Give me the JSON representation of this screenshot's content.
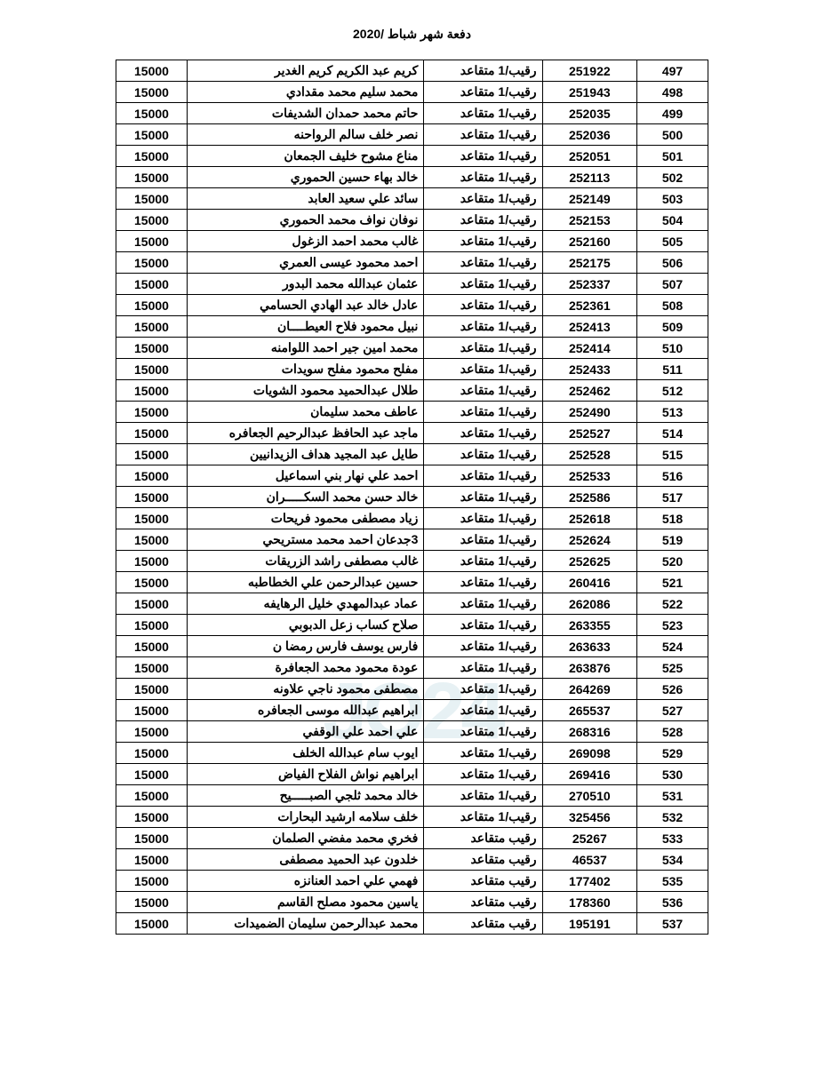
{
  "title": "دفعة شهر شباط /2020",
  "watermark": "JO24",
  "rank_label_1": "رقيب/1 متقاعد",
  "rank_label_2": "رقيب متقاعد",
  "amount_value": "15000",
  "rows": [
    {
      "seq": "497",
      "id": "251922",
      "rank_key": "rank_label_1",
      "name": "كريم عبد الكريم كريم الغدير"
    },
    {
      "seq": "498",
      "id": "251943",
      "rank_key": "rank_label_1",
      "name": "محمد سليم محمد مقدادي"
    },
    {
      "seq": "499",
      "id": "252035",
      "rank_key": "rank_label_1",
      "name": "حاتم محمد حمدان الشديفات"
    },
    {
      "seq": "500",
      "id": "252036",
      "rank_key": "rank_label_1",
      "name": "نصر خلف سالم الرواحنه"
    },
    {
      "seq": "501",
      "id": "252051",
      "rank_key": "rank_label_1",
      "name": "مناع مشوح خليف الجمعان"
    },
    {
      "seq": "502",
      "id": "252113",
      "rank_key": "rank_label_1",
      "name": "خالد بهاء حسين الحموري"
    },
    {
      "seq": "503",
      "id": "252149",
      "rank_key": "rank_label_1",
      "name": "سائد علي سعيد العابد"
    },
    {
      "seq": "504",
      "id": "252153",
      "rank_key": "rank_label_1",
      "name": "نوفان نواف محمد الحموري"
    },
    {
      "seq": "505",
      "id": "252160",
      "rank_key": "rank_label_1",
      "name": "غالب محمد احمد الزغول"
    },
    {
      "seq": "506",
      "id": "252175",
      "rank_key": "rank_label_1",
      "name": "احمد محمود عيسى العمري"
    },
    {
      "seq": "507",
      "id": "252337",
      "rank_key": "rank_label_1",
      "name": "عثمان عبدالله محمد البدور"
    },
    {
      "seq": "508",
      "id": "252361",
      "rank_key": "rank_label_1",
      "name": "عادل خالد عبد الهادي الحسامي"
    },
    {
      "seq": "509",
      "id": "252413",
      "rank_key": "rank_label_1",
      "name": "نبيل محمود فلاح العيطــــان"
    },
    {
      "seq": "510",
      "id": "252414",
      "rank_key": "rank_label_1",
      "name": "محمد امين جير احمد اللوامنه"
    },
    {
      "seq": "511",
      "id": "252433",
      "rank_key": "rank_label_1",
      "name": "مفلح محمود مفلح سويدات"
    },
    {
      "seq": "512",
      "id": "252462",
      "rank_key": "rank_label_1",
      "name": "طلال عبدالحميد محمود الشويات"
    },
    {
      "seq": "513",
      "id": "252490",
      "rank_key": "rank_label_1",
      "name": "عاطف محمد سليمان"
    },
    {
      "seq": "514",
      "id": "252527",
      "rank_key": "rank_label_1",
      "name": "ماجد عبد الحافظ عبدالرحيم الجعافره"
    },
    {
      "seq": "515",
      "id": "252528",
      "rank_key": "rank_label_1",
      "name": "طايل عبد المجيد هداف الزيدانيين"
    },
    {
      "seq": "516",
      "id": "252533",
      "rank_key": "rank_label_1",
      "name": "احمد علي نهار بني اسماعيل"
    },
    {
      "seq": "517",
      "id": "252586",
      "rank_key": "rank_label_1",
      "name": "خالد حسن محمد السكـــــران"
    },
    {
      "seq": "518",
      "id": "252618",
      "rank_key": "rank_label_1",
      "name": "زياد مصطفى محمود فريحات"
    },
    {
      "seq": "519",
      "id": "252624",
      "rank_key": "rank_label_1",
      "name": "3جدعان احمد محمد مستريحي"
    },
    {
      "seq": "520",
      "id": "252625",
      "rank_key": "rank_label_1",
      "name": "غالب مصطفى راشد الزريقات"
    },
    {
      "seq": "521",
      "id": "260416",
      "rank_key": "rank_label_1",
      "name": "حسين عبدالرحمن علي الخطاطبه"
    },
    {
      "seq": "522",
      "id": "262086",
      "rank_key": "rank_label_1",
      "name": "عماد عبدالمهدي خليل الرهايفه"
    },
    {
      "seq": "523",
      "id": "263355",
      "rank_key": "rank_label_1",
      "name": "صلاح كساب زعل الدبوبي"
    },
    {
      "seq": "524",
      "id": "263633",
      "rank_key": "rank_label_1",
      "name": "فارس يوسف فارس رمضا ن"
    },
    {
      "seq": "525",
      "id": "263876",
      "rank_key": "rank_label_1",
      "name": "عودة محمود محمد الجعافرة"
    },
    {
      "seq": "526",
      "id": "264269",
      "rank_key": "rank_label_1",
      "name": "مصطفى محمود ناجي علاونه"
    },
    {
      "seq": "527",
      "id": "265537",
      "rank_key": "rank_label_1",
      "name": "ابراهيم عبدالله موسى الجعافره"
    },
    {
      "seq": "528",
      "id": "268316",
      "rank_key": "rank_label_1",
      "name": "علي احمد علي الوقفي"
    },
    {
      "seq": "529",
      "id": "269098",
      "rank_key": "rank_label_1",
      "name": "ايوب سام عبدالله الخلف"
    },
    {
      "seq": "530",
      "id": "269416",
      "rank_key": "rank_label_1",
      "name": "ابراهيم نواش الفلاح الفياض"
    },
    {
      "seq": "531",
      "id": "270510",
      "rank_key": "rank_label_1",
      "name": "خالد محمد ثلجي الصبـــــيح"
    },
    {
      "seq": "532",
      "id": "325456",
      "rank_key": "rank_label_1",
      "name": "خلف سلامه ارشيد البحارات"
    },
    {
      "seq": "533",
      "id": "25267",
      "rank_key": "rank_label_2",
      "name": "فخري محمد مفضي الصلمان"
    },
    {
      "seq": "534",
      "id": "46537",
      "rank_key": "rank_label_2",
      "name": "خلدون عبد الحميد مصطفى"
    },
    {
      "seq": "535",
      "id": "177402",
      "rank_key": "rank_label_2",
      "name": "فهمي علي احمد العنانزه"
    },
    {
      "seq": "536",
      "id": "178360",
      "rank_key": "rank_label_2",
      "name": "ياسين محمود مصلح القاسم"
    },
    {
      "seq": "537",
      "id": "195191",
      "rank_key": "rank_label_2",
      "name": "محمد عبدالرحمن سليمان الضميدات"
    }
  ]
}
